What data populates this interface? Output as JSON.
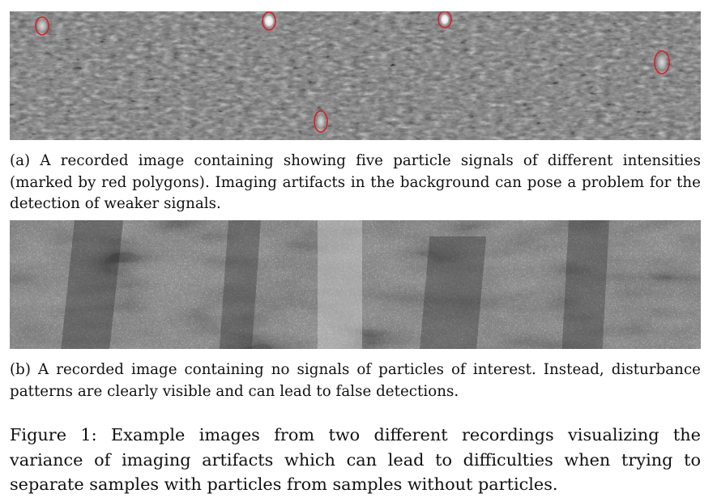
{
  "figure": {
    "panel_a": {
      "caption": "(a) A recorded image containing showing five particle signals of different intensities (marked by red polygons). Imaging artifacts in the background can pose a problem for the detection of weaker signals.",
      "marker_color": "#d81f2a",
      "marked_signals": 5
    },
    "panel_b": {
      "caption": "(b) A recorded image containing no signals of particles of interest. Instead, disturbance patterns are clearly visible and can lead to false detections."
    },
    "caption": "Figure 1: Example images from two different recordings visualizing the variance of imaging artifacts which can lead to difficulties when trying to separate samples with particles from samples without particles."
  }
}
